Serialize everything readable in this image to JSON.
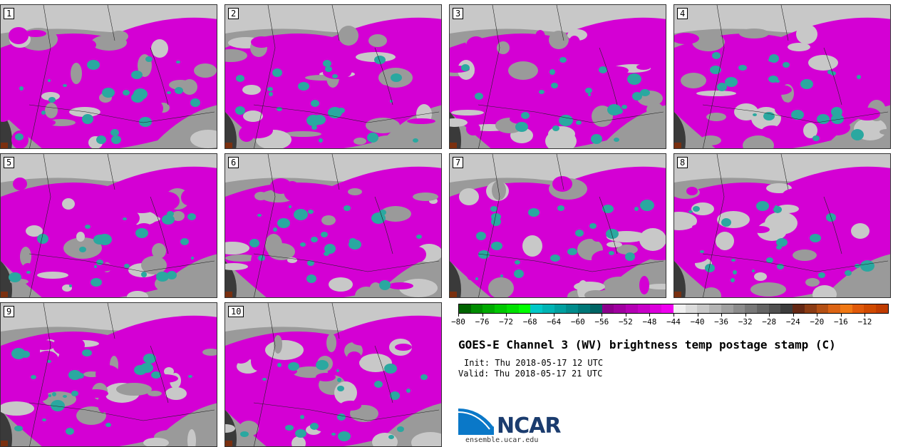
{
  "panels": [
    {
      "label": "1"
    },
    {
      "label": "2"
    },
    {
      "label": "3"
    },
    {
      "label": "4"
    },
    {
      "label": "5"
    },
    {
      "label": "6"
    },
    {
      "label": "7"
    },
    {
      "label": "8"
    },
    {
      "label": "9"
    },
    {
      "label": "10"
    }
  ],
  "colorbar": {
    "colors": [
      "#006400",
      "#008c00",
      "#00aa00",
      "#00c800",
      "#00e000",
      "#00ff00",
      "#00c8c8",
      "#00b4b4",
      "#00a0a0",
      "#008c8c",
      "#007878",
      "#006464",
      "#8c008c",
      "#a000a0",
      "#b400b4",
      "#c800c8",
      "#dc00dc",
      "#f000f0",
      "#f0f0f0",
      "#dcdcdc",
      "#c8c8c8",
      "#b4b4b4",
      "#a0a0a0",
      "#8c8c8c",
      "#787878",
      "#646464",
      "#505050",
      "#3c3c3c",
      "#642814",
      "#8c3c14",
      "#b45014",
      "#dc6414",
      "#f07814",
      "#e05a0a",
      "#d04a00",
      "#c03c00"
    ],
    "ticks": [
      "−80",
      "−76",
      "−72",
      "−68",
      "−64",
      "−60",
      "−56",
      "−52",
      "−48",
      "−44",
      "−40",
      "−36",
      "−32",
      "−28",
      "−24",
      "−20",
      "−16",
      "−12"
    ]
  },
  "title": "GOES-E Channel 3 (WV) brightness temp postage stamp (C)",
  "init_text": "Init: Thu 2018-05-17 12 UTC",
  "valid_text": "Valid: Thu 2018-05-17 21 UTC",
  "logo_text": "NCAR",
  "logo_url": "ensemble.ucar.edu",
  "map_colors": {
    "magenta": "#d400d4",
    "light_gray": "#c8c8c8",
    "gray": "#9a9a9a",
    "cyan": "#2aa8a0",
    "dark": "#3a3a3a",
    "brown": "#7a3010"
  }
}
